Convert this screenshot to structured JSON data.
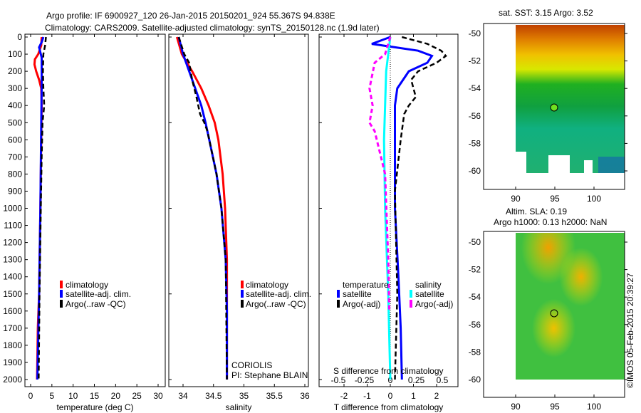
{
  "title_line1": "Argo profile: IF 6900927_120 26-Jan-2015 20150201_924 55.367S 94.838E",
  "title_line2": "Climatology: CARS2009. Satellite-adjusted climatology: synTS_20150128.nc (1.9d later)",
  "colors": {
    "climatology": "#ff0000",
    "satellite": "#0000ff",
    "argo": "#000000",
    "s_satellite": "#00ffff",
    "s_argo": "#ff00ff"
  },
  "chart_data": [
    {
      "type": "line",
      "name": "temperature",
      "xlabel": "temperature (deg C)",
      "ylabel": "",
      "xlim": [
        -1,
        31
      ],
      "ylim": [
        2050,
        0
      ],
      "xticks": [
        0,
        5,
        10,
        15,
        20,
        25,
        30
      ],
      "yticks": [
        0,
        100,
        200,
        300,
        400,
        500,
        600,
        700,
        800,
        900,
        1000,
        1100,
        1200,
        1300,
        1400,
        1500,
        1600,
        1700,
        1800,
        1900,
        2000
      ],
      "legend": [
        "climatology",
        "satellite-adj. clim.",
        "Argo(..raw -QC)"
      ],
      "series": [
        {
          "name": "climatology",
          "color": "#ff0000",
          "depth": [
            0,
            50,
            100,
            130,
            160,
            200,
            250,
            300,
            400,
            600,
            1000,
            1500,
            1700,
            2000
          ],
          "values": [
            2.6,
            2.5,
            1.8,
            1.0,
            0.9,
            1.3,
            2.0,
            2.5,
            2.6,
            2.5,
            2.3,
            2.0,
            1.7,
            1.5
          ]
        },
        {
          "name": "satellite-adj. clim.",
          "color": "#0000ff",
          "depth": [
            0,
            30,
            60,
            80,
            120,
            200,
            300,
            500,
            1000,
            1500,
            2000
          ],
          "values": [
            3.0,
            2.6,
            2.0,
            2.2,
            2.6,
            2.6,
            2.6,
            2.5,
            2.3,
            2.0,
            1.6
          ]
        },
        {
          "name": "Argo(..raw -QC)",
          "color": "#000000",
          "depth": [
            0,
            50,
            100,
            200,
            300,
            400,
            450,
            500,
            700,
            1000,
            1500,
            2000
          ],
          "values": [
            3.6,
            3.4,
            3.0,
            2.9,
            3.0,
            3.2,
            3.0,
            2.8,
            2.6,
            2.4,
            2.1,
            1.9
          ]
        }
      ]
    },
    {
      "type": "line",
      "name": "salinity",
      "xlabel": "salinity",
      "ylabel": "",
      "xlim": [
        33.8,
        36.05
      ],
      "ylim": [
        2050,
        0
      ],
      "xticks": [
        34,
        34.5,
        35,
        35.5,
        36
      ],
      "legend": [
        "climatology",
        "satellite-adj. clim.",
        "Argo(..raw -QC)"
      ],
      "annotation": [
        "CORIOLIS",
        "PI: Stephane BLAIN"
      ],
      "series": [
        {
          "name": "climatology",
          "color": "#ff0000",
          "depth": [
            0,
            100,
            200,
            300,
            400,
            500,
            600,
            800,
            1000,
            1300,
            1600,
            2000
          ],
          "values": [
            33.9,
            33.98,
            34.15,
            34.3,
            34.42,
            34.52,
            34.58,
            34.65,
            34.69,
            34.72,
            34.72,
            34.72
          ]
        },
        {
          "name": "satellite-adj. clim.",
          "color": "#0000ff",
          "depth": [
            0,
            100,
            200,
            300,
            400,
            500,
            600,
            800,
            1000,
            1300,
            1600,
            2000
          ],
          "values": [
            33.93,
            34.0,
            34.1,
            34.2,
            34.3,
            34.37,
            34.43,
            34.55,
            34.63,
            34.7,
            34.72,
            34.72
          ]
        },
        {
          "name": "Argo(..raw -QC)",
          "color": "#000000",
          "depth": [
            0,
            100,
            150,
            250,
            350,
            450,
            500,
            550,
            600,
            800,
            1000,
            1300,
            2000
          ],
          "values": [
            33.93,
            34.02,
            34.1,
            34.15,
            34.22,
            34.28,
            34.35,
            34.4,
            34.43,
            34.55,
            34.63,
            34.7,
            34.72
          ]
        }
      ]
    },
    {
      "type": "line",
      "name": "differences",
      "xlabel": "T difference from climatology",
      "x2label": "S difference from climatology",
      "xlim": [
        -2.9,
        3.0
      ],
      "xticks": [
        -2,
        -1,
        0,
        1,
        2
      ],
      "x2ticks": [
        -0.5,
        -0.25,
        0,
        0.25,
        0.5
      ],
      "x2tick_labels": [
        "-0.5",
        "-0.25",
        "0",
        "0.25",
        "0.5"
      ],
      "legend_temperature_title": "temperature",
      "legend_salinity_title": "salinity",
      "legend": [
        "satellite",
        "Argo(-adj)",
        "satellite",
        "Argo(-adj)"
      ],
      "series": [
        {
          "name": "T satellite",
          "color": "#0000ff",
          "units": "T",
          "depth": [
            0,
            40,
            60,
            80,
            110,
            150,
            200,
            300,
            400,
            600,
            1000,
            1400,
            1700,
            2000
          ],
          "values": [
            0,
            -0.8,
            0.2,
            1.2,
            1.8,
            1.6,
            0.8,
            0.3,
            0.2,
            0.2,
            0.2,
            0.35,
            0.45,
            0.5
          ]
        },
        {
          "name": "T Argo(-adj)",
          "color": "#000000",
          "units": "T",
          "depth": [
            0,
            40,
            80,
            110,
            150,
            200,
            250,
            350,
            400,
            450,
            600,
            900,
            1500,
            2000
          ],
          "values": [
            0.5,
            1.6,
            2.2,
            2.4,
            2.0,
            1.2,
            0.9,
            1.1,
            0.8,
            0.6,
            0.45,
            0.2,
            0.3,
            0.2
          ]
        },
        {
          "name": "S satellite",
          "color": "#00ffff",
          "units": "S",
          "depth": [
            0,
            100,
            200,
            400,
            600,
            1000,
            1500,
            2000
          ],
          "values": [
            0,
            -0.02,
            -0.04,
            -0.05,
            -0.06,
            -0.05,
            -0.02,
            0
          ]
        },
        {
          "name": "S Argo(-adj)",
          "color": "#ff00ff",
          "units": "S",
          "depth": [
            0,
            100,
            150,
            300,
            400,
            500,
            550,
            800,
            1300,
            1600
          ],
          "values": [
            0,
            -0.05,
            -0.15,
            -0.2,
            -0.17,
            -0.2,
            -0.15,
            -0.05,
            -0.02,
            -0.01
          ]
        }
      ]
    }
  ],
  "sst_map": {
    "title": "sat. SST: 3.15 Argo: 3.52",
    "xticks": [
      "90",
      "95",
      "100"
    ],
    "yticks": [
      "-50",
      "-52",
      "-54",
      "-56",
      "-58",
      "-60"
    ]
  },
  "sla_map": {
    "title1": "Altim. SLA: 0.19",
    "title2": "Argo h1000: 0.13 h2000: NaN",
    "xticks": [
      "90",
      "95",
      "100"
    ],
    "yticks": [
      "-50",
      "-52",
      "-54",
      "-56",
      "-58",
      "-60"
    ]
  },
  "credit": "©IMOS 05-Feb-2015 20:39:27"
}
